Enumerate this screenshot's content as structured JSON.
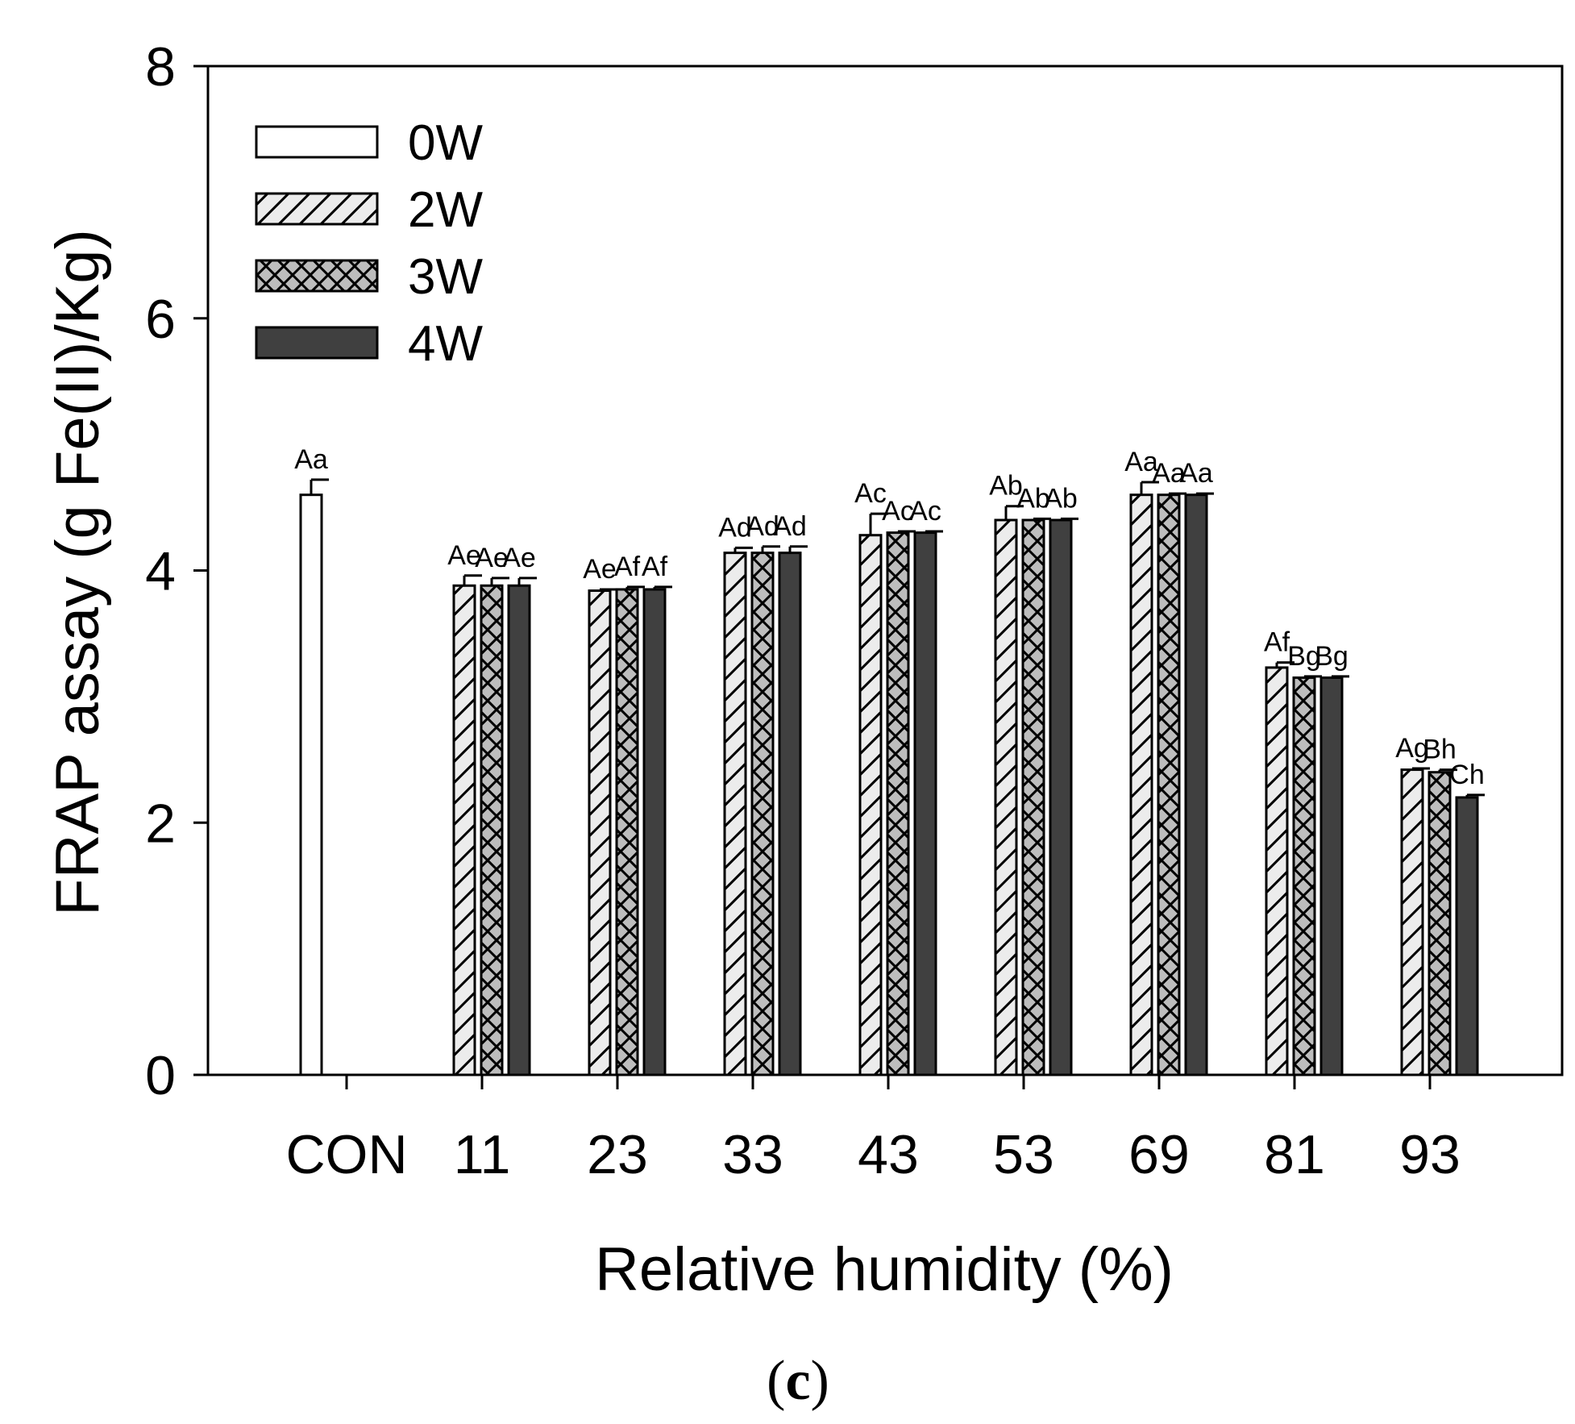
{
  "chart_data": {
    "type": "bar",
    "title": "",
    "xlabel": "Relative humidity (%)",
    "ylabel": "FRAP assay (g Fe(II)/Kg)",
    "ylim": [
      0,
      8
    ],
    "yticks": [
      0,
      2,
      4,
      6,
      8
    ],
    "categories": [
      "CON",
      "11",
      "23",
      "33",
      "43",
      "53",
      "69",
      "81",
      "93"
    ],
    "legend_position": "top-left",
    "series": [
      {
        "name": "0W",
        "fill": "plain",
        "color": "#ffffff",
        "values": [
          4.6,
          null,
          null,
          null,
          null,
          null,
          null,
          null,
          null
        ],
        "errors": [
          0.12,
          null,
          null,
          null,
          null,
          null,
          null,
          null,
          null
        ],
        "labels": [
          "Aa",
          null,
          null,
          null,
          null,
          null,
          null,
          null,
          null
        ]
      },
      {
        "name": "2W",
        "fill": "diagonal",
        "color": "#ececec",
        "values": [
          null,
          3.88,
          3.84,
          4.14,
          4.28,
          4.4,
          4.6,
          3.23,
          2.42
        ],
        "errors": [
          null,
          0.08,
          0.01,
          0.04,
          0.17,
          0.11,
          0.1,
          0.04,
          0.01
        ],
        "labels": [
          null,
          "Ae",
          "Ae",
          "Ad",
          "Ac",
          "Ab",
          "Aa",
          "Af",
          "Ag"
        ]
      },
      {
        "name": "3W",
        "fill": "crosshatch",
        "color": "#bdbdbd",
        "values": [
          null,
          3.88,
          3.85,
          4.14,
          4.3,
          4.4,
          4.6,
          3.15,
          2.4
        ],
        "errors": [
          null,
          0.06,
          0.02,
          0.05,
          0.01,
          0.01,
          0.01,
          0.01,
          0.02
        ],
        "labels": [
          null,
          "Ae",
          "Af",
          "Ad",
          "Ac",
          "Ab",
          "Aa",
          "Bg",
          "Bh"
        ]
      },
      {
        "name": "4W",
        "fill": "solid",
        "color": "#404040",
        "values": [
          null,
          3.88,
          3.85,
          4.14,
          4.3,
          4.4,
          4.6,
          3.15,
          2.2
        ],
        "errors": [
          null,
          0.06,
          0.02,
          0.05,
          0.01,
          0.01,
          0.01,
          0.01,
          0.02
        ],
        "labels": [
          null,
          "Ae",
          "Af",
          "Ad",
          "Ac",
          "Ab",
          "Aa",
          "Bg",
          "Ch"
        ]
      }
    ],
    "panel_label": {
      "open": "(",
      "letter": "c",
      "close": ")"
    }
  }
}
